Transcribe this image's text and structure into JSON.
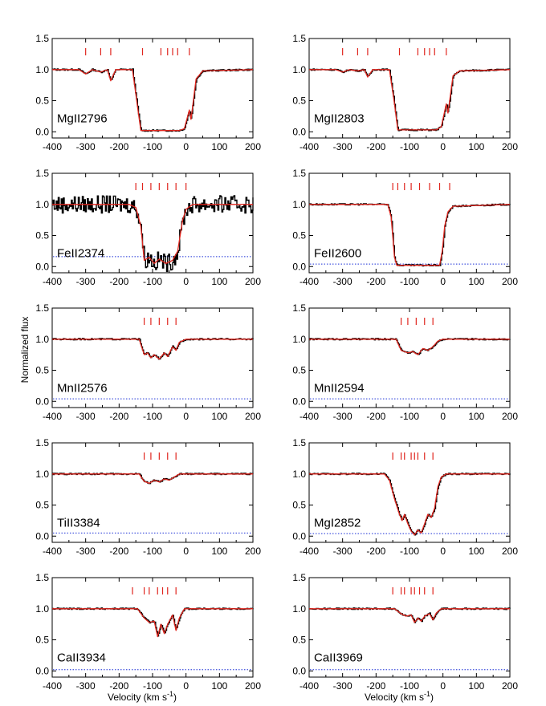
{
  "figure": {
    "ylabel": "Normalized flux",
    "xlabel": "Velocity (km s",
    "xlabel_sup": "-1",
    "xlabel_close": ")",
    "colors": {
      "data": "#000000",
      "model": "#e0261e",
      "error": "#1a2fd6",
      "ticks": "#e0261e"
    }
  },
  "chart_data": [
    {
      "type": "line",
      "label": "MgII2796",
      "xlim": [
        -400,
        200
      ],
      "ylim": [
        -0.1,
        1.5
      ],
      "xticks": [
        -400,
        -300,
        -200,
        -100,
        0,
        100,
        200
      ],
      "yticks": [
        0.0,
        0.5,
        1.0,
        1.5
      ],
      "component_ticks": [
        -300,
        -255,
        -225,
        -130,
        -75,
        -55,
        -40,
        -25,
        10
      ],
      "profile": [
        [
          -400,
          1.0
        ],
        [
          -320,
          1.0
        ],
        [
          -300,
          0.93
        ],
        [
          -280,
          1.0
        ],
        [
          -255,
          0.96
        ],
        [
          -235,
          1.0
        ],
        [
          -225,
          0.82
        ],
        [
          -210,
          1.0
        ],
        [
          -160,
          1.0
        ],
        [
          -145,
          0.4
        ],
        [
          -135,
          0.02
        ],
        [
          -20,
          0.02
        ],
        [
          -5,
          0.05
        ],
        [
          10,
          0.35
        ],
        [
          15,
          0.2
        ],
        [
          30,
          0.85
        ],
        [
          50,
          0.98
        ],
        [
          200,
          1.0
        ]
      ],
      "error_level": null
    },
    {
      "type": "line",
      "label": "MgII2803",
      "xlim": [
        -400,
        200
      ],
      "ylim": [
        -0.1,
        1.5
      ],
      "xticks": [
        -400,
        -300,
        -200,
        -100,
        0,
        100,
        200
      ],
      "yticks": [
        0.0,
        0.5,
        1.0,
        1.5
      ],
      "component_ticks": [
        -300,
        -255,
        -225,
        -130,
        -75,
        -55,
        -40,
        -25,
        10
      ],
      "profile": [
        [
          -400,
          1.0
        ],
        [
          -320,
          1.0
        ],
        [
          -300,
          0.96
        ],
        [
          -280,
          1.0
        ],
        [
          -255,
          0.98
        ],
        [
          -235,
          1.0
        ],
        [
          -225,
          0.88
        ],
        [
          -210,
          1.0
        ],
        [
          -160,
          1.0
        ],
        [
          -145,
          0.45
        ],
        [
          -135,
          0.03
        ],
        [
          -20,
          0.03
        ],
        [
          -5,
          0.08
        ],
        [
          10,
          0.45
        ],
        [
          15,
          0.3
        ],
        [
          30,
          0.9
        ],
        [
          50,
          0.98
        ],
        [
          200,
          1.0
        ]
      ],
      "error_level": null
    },
    {
      "type": "line",
      "label": "FeII2374",
      "xlim": [
        -400,
        200
      ],
      "ylim": [
        -0.1,
        1.5
      ],
      "xticks": [
        -400,
        -300,
        -200,
        -100,
        0,
        100,
        200
      ],
      "yticks": [
        0.0,
        0.5,
        1.0,
        1.5
      ],
      "component_ticks": [
        -150,
        -130,
        -105,
        -80,
        -55,
        -30,
        0
      ],
      "profile": [
        [
          -400,
          1.0
        ],
        [
          -170,
          1.0
        ],
        [
          -150,
          0.95
        ],
        [
          -135,
          0.65
        ],
        [
          -125,
          0.1
        ],
        [
          -110,
          0.15
        ],
        [
          -95,
          0.05
        ],
        [
          -80,
          0.12
        ],
        [
          -60,
          0.05
        ],
        [
          -40,
          0.1
        ],
        [
          -25,
          0.25
        ],
        [
          -10,
          0.75
        ],
        [
          0,
          0.92
        ],
        [
          20,
          1.0
        ],
        [
          200,
          1.0
        ]
      ],
      "error_level": 0.16,
      "noisy": true
    },
    {
      "type": "line",
      "label": "FeII2600",
      "xlim": [
        -400,
        200
      ],
      "ylim": [
        -0.1,
        1.5
      ],
      "xticks": [
        -400,
        -300,
        -200,
        -100,
        0,
        100,
        200
      ],
      "yticks": [
        0.0,
        0.5,
        1.0,
        1.5
      ],
      "component_ticks": [
        -150,
        -135,
        -115,
        -95,
        -70,
        -40,
        -10,
        20
      ],
      "profile": [
        [
          -400,
          1.0
        ],
        [
          -165,
          1.0
        ],
        [
          -155,
          0.8
        ],
        [
          -145,
          0.15
        ],
        [
          -138,
          0.02
        ],
        [
          -10,
          0.02
        ],
        [
          -2,
          0.25
        ],
        [
          5,
          0.65
        ],
        [
          15,
          0.88
        ],
        [
          30,
          0.97
        ],
        [
          200,
          1.0
        ]
      ],
      "error_level": 0.04
    },
    {
      "type": "line",
      "label": "MnII2576",
      "xlim": [
        -400,
        200
      ],
      "ylim": [
        -0.1,
        1.5
      ],
      "xticks": [
        -400,
        -300,
        -200,
        -100,
        0,
        100,
        200
      ],
      "yticks": [
        0.0,
        0.5,
        1.0,
        1.5
      ],
      "component_ticks": [
        -125,
        -105,
        -80,
        -55,
        -30
      ],
      "profile": [
        [
          -400,
          1.0
        ],
        [
          -140,
          1.0
        ],
        [
          -125,
          0.75
        ],
        [
          -115,
          0.78
        ],
        [
          -105,
          0.7
        ],
        [
          -95,
          0.75
        ],
        [
          -80,
          0.68
        ],
        [
          -65,
          0.78
        ],
        [
          -55,
          0.72
        ],
        [
          -40,
          0.88
        ],
        [
          -30,
          0.82
        ],
        [
          -20,
          0.95
        ],
        [
          0,
          1.0
        ],
        [
          200,
          1.0
        ]
      ],
      "error_level": 0.04
    },
    {
      "type": "line",
      "label": "MnII2594",
      "xlim": [
        -400,
        200
      ],
      "ylim": [
        -0.1,
        1.5
      ],
      "xticks": [
        -400,
        -300,
        -200,
        -100,
        0,
        100,
        200
      ],
      "yticks": [
        0.0,
        0.5,
        1.0,
        1.5
      ],
      "component_ticks": [
        -125,
        -105,
        -80,
        -55,
        -30
      ],
      "profile": [
        [
          -400,
          1.0
        ],
        [
          -140,
          1.0
        ],
        [
          -125,
          0.82
        ],
        [
          -105,
          0.78
        ],
        [
          -90,
          0.8
        ],
        [
          -75,
          0.75
        ],
        [
          -60,
          0.85
        ],
        [
          -45,
          0.82
        ],
        [
          -30,
          0.88
        ],
        [
          -15,
          0.97
        ],
        [
          0,
          1.0
        ],
        [
          200,
          1.0
        ]
      ],
      "error_level": 0.04
    },
    {
      "type": "line",
      "label": "TiII3384",
      "xlim": [
        -400,
        200
      ],
      "ylim": [
        -0.1,
        1.5
      ],
      "xticks": [
        -400,
        -300,
        -200,
        -100,
        0,
        100,
        200
      ],
      "yticks": [
        0.0,
        0.5,
        1.0,
        1.5
      ],
      "component_ticks": [
        -125,
        -105,
        -80,
        -55,
        -30
      ],
      "profile": [
        [
          -400,
          1.0
        ],
        [
          -140,
          1.0
        ],
        [
          -125,
          0.88
        ],
        [
          -110,
          0.85
        ],
        [
          -95,
          0.9
        ],
        [
          -80,
          0.87
        ],
        [
          -65,
          0.92
        ],
        [
          -50,
          0.9
        ],
        [
          -35,
          0.95
        ],
        [
          -20,
          1.0
        ],
        [
          200,
          1.0
        ]
      ],
      "error_level": 0.05
    },
    {
      "type": "line",
      "label": "MgI2852",
      "xlim": [
        -400,
        200
      ],
      "ylim": [
        -0.1,
        1.5
      ],
      "xticks": [
        -400,
        -300,
        -200,
        -100,
        0,
        100,
        200
      ],
      "yticks": [
        0.0,
        0.5,
        1.0,
        1.5
      ],
      "component_ticks": [
        -150,
        -125,
        -115,
        -95,
        -85,
        -75,
        -55,
        -30
      ],
      "profile": [
        [
          -400,
          1.0
        ],
        [
          -175,
          1.0
        ],
        [
          -160,
          0.9
        ],
        [
          -145,
          0.6
        ],
        [
          -130,
          0.35
        ],
        [
          -122,
          0.25
        ],
        [
          -115,
          0.35
        ],
        [
          -105,
          0.2
        ],
        [
          -95,
          0.08
        ],
        [
          -85,
          0.02
        ],
        [
          -75,
          0.1
        ],
        [
          -65,
          0.05
        ],
        [
          -55,
          0.2
        ],
        [
          -45,
          0.35
        ],
        [
          -35,
          0.3
        ],
        [
          -25,
          0.45
        ],
        [
          -15,
          0.8
        ],
        [
          -5,
          0.95
        ],
        [
          10,
          1.0
        ],
        [
          200,
          1.0
        ]
      ],
      "error_level": 0.04
    },
    {
      "type": "line",
      "label": "CaII3934",
      "xlim": [
        -400,
        200
      ],
      "ylim": [
        -0.1,
        1.5
      ],
      "xticks": [
        -400,
        -300,
        -200,
        -100,
        0,
        100,
        200
      ],
      "yticks": [
        0.0,
        0.5,
        1.0,
        1.5
      ],
      "component_ticks": [
        -160,
        -125,
        -110,
        -85,
        -70,
        -55,
        -30
      ],
      "profile": [
        [
          -400,
          1.0
        ],
        [
          -145,
          1.0
        ],
        [
          -125,
          0.85
        ],
        [
          -110,
          0.78
        ],
        [
          -95,
          0.8
        ],
        [
          -85,
          0.55
        ],
        [
          -75,
          0.75
        ],
        [
          -65,
          0.6
        ],
        [
          -55,
          0.75
        ],
        [
          -40,
          0.9
        ],
        [
          -30,
          0.65
        ],
        [
          -20,
          0.85
        ],
        [
          -5,
          1.0
        ],
        [
          200,
          1.0
        ]
      ],
      "error_level": 0.02
    },
    {
      "type": "line",
      "label": "CaII3969",
      "xlim": [
        -400,
        200
      ],
      "ylim": [
        -0.1,
        1.5
      ],
      "xticks": [
        -400,
        -300,
        -200,
        -100,
        0,
        100,
        200
      ],
      "yticks": [
        0.0,
        0.5,
        1.0,
        1.5
      ],
      "component_ticks": [
        -150,
        -125,
        -115,
        -95,
        -85,
        -70,
        -55,
        -30
      ],
      "profile": [
        [
          -400,
          1.0
        ],
        [
          -145,
          1.0
        ],
        [
          -125,
          0.92
        ],
        [
          -110,
          0.88
        ],
        [
          -95,
          0.9
        ],
        [
          -85,
          0.78
        ],
        [
          -75,
          0.85
        ],
        [
          -65,
          0.8
        ],
        [
          -55,
          0.88
        ],
        [
          -40,
          0.92
        ],
        [
          -30,
          0.82
        ],
        [
          -20,
          0.93
        ],
        [
          -5,
          1.0
        ],
        [
          200,
          1.0
        ]
      ],
      "error_level": 0.02
    }
  ]
}
